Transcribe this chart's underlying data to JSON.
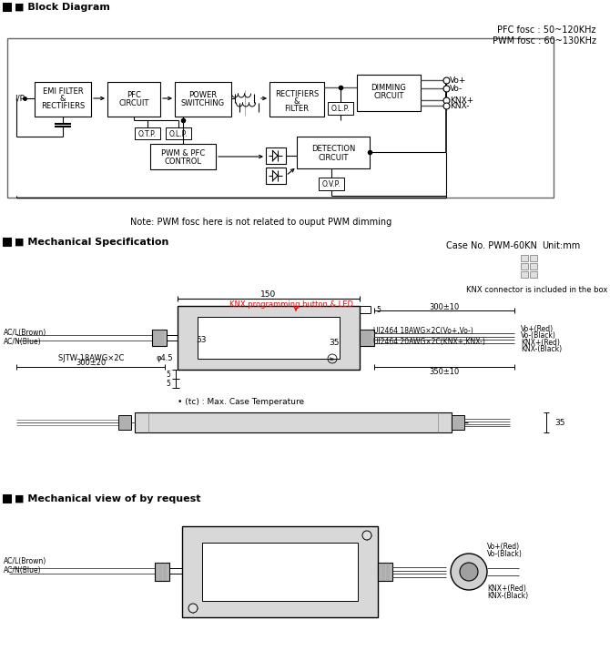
{
  "title_block": "Block Diagram",
  "title_mech": "Mechanical Specification",
  "title_view": "Mechanical view of by request",
  "pfc_text": "PFC fosc : 50~120KHz\nPWM fosc : 60~130KHz",
  "note_text": "Note: PWM fosc here is not related to ouput PWM dimming",
  "case_no": "Case No. PWM-60KN",
  "unit_mm": "Unit:mm",
  "knx_connector_text": "KNX connector is included in the box",
  "tc_text": "• (tc) : Max. Case Temperature",
  "bg_color": "#ffffff"
}
